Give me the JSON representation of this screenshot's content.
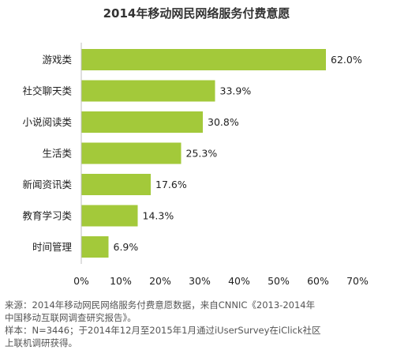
{
  "chart_data": {
    "type": "bar",
    "orientation": "horizontal",
    "title": "2014年移动网民网络服务付费意愿",
    "categories": [
      "游戏类",
      "社交聊天类",
      "小说阅读类",
      "生活类",
      "新闻资讯类",
      "教育学习类",
      "时间管理"
    ],
    "values": [
      62.0,
      33.9,
      30.8,
      25.3,
      17.6,
      14.3,
      6.9
    ],
    "value_labels": [
      "62.0%",
      "33.9%",
      "30.8%",
      "25.3%",
      "17.6%",
      "14.3%",
      "6.9%"
    ],
    "xlim": [
      0,
      70
    ],
    "xticks": [
      0,
      10,
      20,
      30,
      40,
      50,
      60,
      70
    ],
    "xtick_labels": [
      "0%",
      "10%",
      "20%",
      "30%",
      "40%",
      "50%",
      "60%",
      "70%"
    ],
    "grid": false,
    "legend": "none",
    "bar_color": "#a3c93a"
  },
  "source": {
    "line1": "来源：2014年移动网民网络服务付费意愿数据，来自CNNIC《2013-2014年",
    "line2": "中国移动互联网调查研究报告》。",
    "line3": "样本：N=3446；于2014年12月至2015年1月通过iUserSurvey在iClick社区",
    "line4": "上联机调研获得。"
  }
}
